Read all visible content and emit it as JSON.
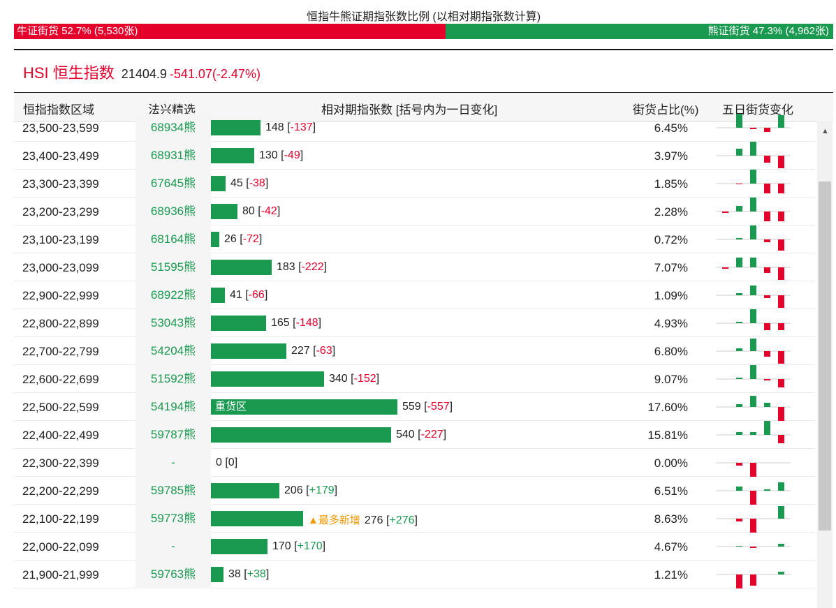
{
  "ratio": {
    "title": "恒指牛熊证期指张数比例 (以相对期指张数计算)",
    "bull_label": "牛证街货 52.7% (5,530张)",
    "bear_label": "熊证街货 47.3% (4,962张)",
    "bull_percent": 52.7,
    "bear_percent": 47.3,
    "colors": {
      "bull": "#e4002b",
      "bear": "#1a9950"
    }
  },
  "index": {
    "name": "HSI 恒生指数",
    "value": "21404.9",
    "change": "-541.07(-2.47%)"
  },
  "table": {
    "headers": {
      "zone": "恒指指数区域",
      "pick": "法兴精选",
      "contracts": "相对期指张数 [括号内为一日变化]",
      "share": "街货占比(%)",
      "trend": "五日街货变化"
    },
    "rows": [
      {
        "zone": "23,500-23,599",
        "pick": "68934熊",
        "contracts": 148,
        "change": "-137",
        "share": "6.45%",
        "tag": "",
        "spark": [
          0,
          20,
          -2,
          -6,
          18
        ]
      },
      {
        "zone": "23,400-23,499",
        "pick": "68931熊",
        "contracts": 130,
        "change": "-49",
        "share": "3.97%",
        "tag": "",
        "spark": [
          0,
          10,
          20,
          -10,
          -18
        ]
      },
      {
        "zone": "23,300-23,399",
        "pick": "67645熊",
        "contracts": 45,
        "change": "-38",
        "share": "1.85%",
        "tag": "",
        "spark": [
          0,
          -1,
          20,
          -14,
          -14
        ]
      },
      {
        "zone": "23,200-23,299",
        "pick": "68936熊",
        "contracts": 80,
        "change": "-42",
        "share": "2.28%",
        "tag": "",
        "spark": [
          -2,
          8,
          20,
          -14,
          -14
        ]
      },
      {
        "zone": "23,100-23,199",
        "pick": "68164熊",
        "contracts": 26,
        "change": "-72",
        "share": "0.72%",
        "tag": "",
        "spark": [
          0,
          2,
          20,
          -4,
          -16
        ]
      },
      {
        "zone": "23,000-23,099",
        "pick": "51595熊",
        "contracts": 183,
        "change": "-222",
        "share": "7.07%",
        "tag": "",
        "spark": [
          -2,
          14,
          14,
          -8,
          -18
        ]
      },
      {
        "zone": "22,900-22,999",
        "pick": "68922熊",
        "contracts": 41,
        "change": "-66",
        "share": "1.09%",
        "tag": "",
        "spark": [
          0,
          3,
          14,
          -4,
          -18
        ]
      },
      {
        "zone": "22,800-22,899",
        "pick": "53043熊",
        "contracts": 165,
        "change": "-148",
        "share": "4.93%",
        "tag": "",
        "spark": [
          0,
          2,
          20,
          -10,
          -10
        ]
      },
      {
        "zone": "22,700-22,799",
        "pick": "54204熊",
        "contracts": 227,
        "change": "-63",
        "share": "6.80%",
        "tag": "",
        "spark": [
          0,
          4,
          18,
          -8,
          -18
        ]
      },
      {
        "zone": "22,600-22,699",
        "pick": "51592熊",
        "contracts": 340,
        "change": "-152",
        "share": "9.07%",
        "tag": "",
        "spark": [
          0,
          2,
          20,
          -2,
          -12
        ]
      },
      {
        "zone": "22,500-22,599",
        "pick": "54194熊",
        "contracts": 559,
        "change": "-557",
        "share": "17.60%",
        "tag": "重货区",
        "spark": [
          0,
          4,
          16,
          6,
          -20
        ]
      },
      {
        "zone": "22,400-22,499",
        "pick": "59787熊",
        "contracts": 540,
        "change": "-227",
        "share": "15.81%",
        "tag": "",
        "spark": [
          0,
          4,
          4,
          20,
          -12
        ]
      },
      {
        "zone": "22,300-22,399",
        "pick": "-",
        "contracts": 0,
        "change": "0",
        "share": "0.00%",
        "tag": "",
        "spark": [
          0,
          -4,
          -20,
          0,
          0
        ]
      },
      {
        "zone": "22,200-22,299",
        "pick": "59785熊",
        "contracts": 206,
        "change": "+179",
        "share": "6.51%",
        "tag": "",
        "spark": [
          0,
          6,
          -20,
          2,
          12
        ]
      },
      {
        "zone": "22,100-22,199",
        "pick": "59773熊",
        "contracts": 276,
        "change": "+276",
        "share": "8.63%",
        "tag": "▲最多新增",
        "spark": [
          0,
          -4,
          -20,
          0,
          18
        ]
      },
      {
        "zone": "22,000-22,099",
        "pick": "-",
        "contracts": 170,
        "change": "+170",
        "share": "4.67%",
        "tag": "",
        "spark": [
          0,
          1,
          -2,
          0,
          4
        ]
      },
      {
        "zone": "21,900-21,999",
        "pick": "59763熊",
        "contracts": 38,
        "change": "+38",
        "share": "1.21%",
        "tag": "",
        "spark": [
          0,
          -20,
          -16,
          0,
          4
        ]
      }
    ],
    "colors": {
      "bar": "#1a9950",
      "up": "#1a9950",
      "down": "#e4002b",
      "new_tag": "#f39800"
    }
  },
  "scrollbar": {
    "up_icon": "▲"
  }
}
